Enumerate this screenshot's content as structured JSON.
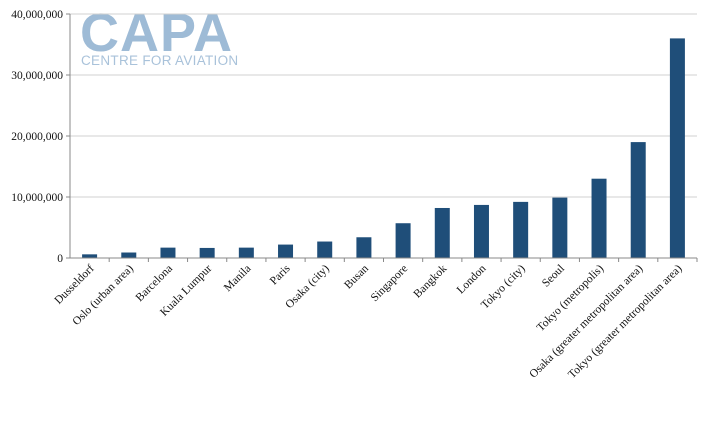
{
  "logo": {
    "name": "CAPA",
    "tagline": "CENTRE FOR AVIATION"
  },
  "colors": {
    "bar": "#1f4e79",
    "grid": "#d0d0d0",
    "axis": "#888888",
    "logo": "#9ebbd6"
  },
  "chart_data": {
    "type": "bar",
    "title": "",
    "xlabel": "",
    "ylabel": "",
    "ylim": [
      0,
      40000000
    ],
    "yticks": [
      0,
      10000000,
      20000000,
      30000000,
      40000000
    ],
    "ytick_labels": [
      "0",
      "10,000,000",
      "20,000,000",
      "30,000,000",
      "40,000,000"
    ],
    "grid": "horizontal",
    "legend": "none",
    "categories": [
      "Dusseldorf",
      "Oslo (urban area)",
      "Barcelona",
      "Kuala Lumpur",
      "Manila",
      "Paris",
      "Osaka (city)",
      "Busan",
      "Singapore",
      "Bangkok",
      "London",
      "Tokyo (city)",
      "Seoul",
      "Tokyo (metropolis)",
      "Osaka (greater metropolitan area)",
      "Tokyo (greater metropolitan area)"
    ],
    "values": [
      600000,
      900000,
      1700000,
      1650000,
      1700000,
      2200000,
      2700000,
      3400000,
      5700000,
      8200000,
      8700000,
      9200000,
      9900000,
      13000000,
      19000000,
      36000000
    ]
  }
}
